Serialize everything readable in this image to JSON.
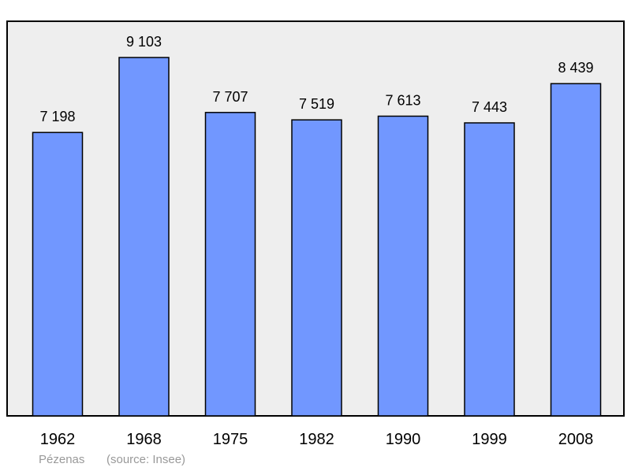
{
  "chart_data": {
    "type": "bar",
    "categories": [
      "1962",
      "1968",
      "1975",
      "1982",
      "1990",
      "1999",
      "2008"
    ],
    "values": [
      7198,
      9103,
      7707,
      7519,
      7613,
      7443,
      8439
    ],
    "value_labels": [
      "7 198",
      "9 103",
      "7 707",
      "7 519",
      "7 613",
      "7 443",
      "8 439"
    ],
    "ylim": [
      0,
      9700
    ],
    "grid": false,
    "colors": {
      "bar": "#7197ff",
      "plot_background": "#eeeeee",
      "bar_stroke": "#000000"
    }
  },
  "caption": {
    "place": "Pézenas",
    "source": "(source: Insee)"
  }
}
